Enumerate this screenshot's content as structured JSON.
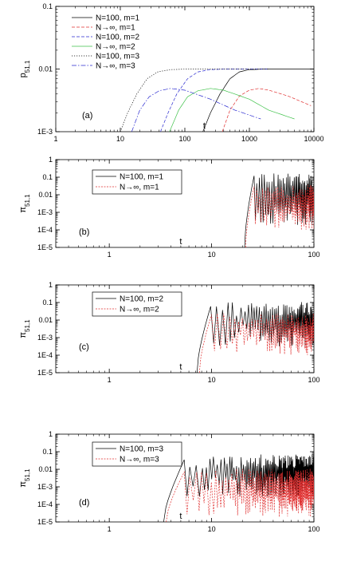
{
  "chart_data": [
    {
      "panel": "(a)",
      "type": "line",
      "ylabel": "p",
      "ylabel_sub": "51,1",
      "xlabel": "t",
      "xscale": "log",
      "yscale": "log",
      "xlim": [
        1,
        10000
      ],
      "ylim": [
        0.001,
        0.1
      ],
      "xticks": [
        {
          "v": 1,
          "t": "1"
        },
        {
          "v": 10,
          "t": "10"
        },
        {
          "v": 100,
          "t": "100"
        },
        {
          "v": 1000,
          "t": "1000"
        },
        {
          "v": 10000,
          "t": "10000"
        }
      ],
      "yticks": [
        {
          "v": 0.001,
          "t": "1E-3"
        },
        {
          "v": 0.01,
          "t": "0.01"
        },
        {
          "v": 0.1,
          "t": "0.1"
        }
      ],
      "legend_position": "top-left",
      "series": [
        {
          "name": "N=100, m=1",
          "color": "#000000",
          "dash": "",
          "points": [
            [
              190,
              0.001
            ],
            [
              250,
              0.002
            ],
            [
              350,
              0.004
            ],
            [
              500,
              0.007
            ],
            [
              700,
              0.009
            ],
            [
              1000,
              0.0098
            ],
            [
              2000,
              0.01
            ],
            [
              10000,
              0.01
            ]
          ]
        },
        {
          "name": "N→∞, m=1",
          "color": "#e03030",
          "dash": "4,2",
          "points": [
            [
              380,
              0.001
            ],
            [
              500,
              0.0022
            ],
            [
              700,
              0.0037
            ],
            [
              1000,
              0.0046
            ],
            [
              1400,
              0.0049
            ],
            [
              2000,
              0.0046
            ],
            [
              4000,
              0.0037
            ],
            [
              9000,
              0.0026
            ]
          ]
        },
        {
          "name": "N=100, m=2",
          "color": "#2a2ad0",
          "dash": "4,2",
          "points": [
            [
              42,
              0.001
            ],
            [
              55,
              0.002
            ],
            [
              75,
              0.004
            ],
            [
              110,
              0.007
            ],
            [
              160,
              0.009
            ],
            [
              250,
              0.0098
            ],
            [
              500,
              0.01
            ],
            [
              2000,
              0.01
            ]
          ]
        },
        {
          "name": "N→∞, m=2",
          "color": "#3fc24a",
          "dash": "",
          "points": [
            [
              58,
              0.001
            ],
            [
              80,
              0.0022
            ],
            [
              110,
              0.0036
            ],
            [
              160,
              0.0045
            ],
            [
              250,
              0.0049
            ],
            [
              400,
              0.0046
            ],
            [
              1000,
              0.0033
            ],
            [
              2000,
              0.0022
            ],
            [
              5000,
              0.0016
            ]
          ]
        },
        {
          "name": "N=100, m=3",
          "color": "#000000",
          "dash": "1.2,1.8",
          "points": [
            [
              10,
              0.001
            ],
            [
              13,
              0.002
            ],
            [
              18,
              0.004
            ],
            [
              26,
              0.007
            ],
            [
              38,
              0.009
            ],
            [
              60,
              0.0098
            ],
            [
              120,
              0.01
            ],
            [
              500,
              0.01
            ],
            [
              2000,
              0.01
            ]
          ]
        },
        {
          "name": "N→∞, m=3",
          "color": "#2a2ad0",
          "dash": "6,2,1.5,2",
          "points": [
            [
              15,
              0.001
            ],
            [
              20,
              0.0022
            ],
            [
              28,
              0.0036
            ],
            [
              40,
              0.0045
            ],
            [
              60,
              0.0049
            ],
            [
              100,
              0.0046
            ],
            [
              250,
              0.0033
            ],
            [
              600,
              0.0022
            ],
            [
              1500,
              0.0016
            ]
          ]
        }
      ]
    },
    {
      "panel": "(b)",
      "type": "line",
      "ylabel": "π",
      "ylabel_sub": "51,1",
      "xlabel": "t",
      "xscale": "log",
      "yscale": "log",
      "xlim": [
        0.3,
        100
      ],
      "ylim": [
        1e-05,
        1
      ],
      "xticks": [
        {
          "v": 1,
          "t": "1"
        },
        {
          "v": 10,
          "t": "10"
        },
        {
          "v": 100,
          "t": "100"
        }
      ],
      "yticks": [
        {
          "v": 1e-05,
          "t": "1E-5"
        },
        {
          "v": 0.0001,
          "t": "1E-4"
        },
        {
          "v": 0.001,
          "t": "1E-3"
        },
        {
          "v": 0.01,
          "t": "0.01"
        },
        {
          "v": 0.1,
          "t": "0.1"
        },
        {
          "v": 1,
          "t": "1"
        }
      ],
      "legend_position": "top-left",
      "series": [
        {
          "name": "N=100, m=1",
          "color": "#000000",
          "dash": "",
          "onset": 21,
          "peak_t": 26,
          "peak_v": 0.12,
          "band_top": 0.05,
          "band_bottom": 0.003,
          "period": 2.0
        },
        {
          "name": "N→∞, m=1",
          "color": "#e03030",
          "dash": "2,1.5",
          "onset": 21.5,
          "peak_t": 26,
          "peak_v": 0.03,
          "band_top": 0.012,
          "band_bottom": 0.0015,
          "period": 2.0
        }
      ]
    },
    {
      "panel": "(c)",
      "type": "line",
      "ylabel": "π",
      "ylabel_sub": "51,1",
      "xlabel": "t",
      "xscale": "log",
      "yscale": "log",
      "xlim": [
        0.3,
        100
      ],
      "ylim": [
        1e-05,
        1
      ],
      "xticks": [
        {
          "v": 1,
          "t": "1"
        },
        {
          "v": 10,
          "t": "10"
        },
        {
          "v": 100,
          "t": "100"
        }
      ],
      "yticks": [
        {
          "v": 1e-05,
          "t": "1E-5"
        },
        {
          "v": 0.0001,
          "t": "1E-4"
        },
        {
          "v": 0.001,
          "t": "1E-3"
        },
        {
          "v": 0.01,
          "t": "0.01"
        },
        {
          "v": 0.1,
          "t": "0.1"
        },
        {
          "v": 1,
          "t": "1"
        }
      ],
      "legend_position": "top-left",
      "series": [
        {
          "name": "N=100, m=2",
          "color": "#000000",
          "dash": "",
          "onset": 7.2,
          "peak_t": 9.8,
          "peak_v": 0.06,
          "band_top": 0.03,
          "band_bottom": 0.005,
          "period": 1.7
        },
        {
          "name": "N→∞, m=2",
          "color": "#e03030",
          "dash": "2,1.5",
          "onset": 7.6,
          "peak_t": 10.0,
          "peak_v": 0.02,
          "band_top": 0.007,
          "band_bottom": 0.0015,
          "period": 1.7
        }
      ]
    },
    {
      "panel": "(d)",
      "type": "line",
      "ylabel": "π",
      "ylabel_sub": "51,1",
      "xlabel": "t",
      "xscale": "log",
      "yscale": "log",
      "xlim": [
        0.3,
        100
      ],
      "ylim": [
        1e-05,
        1
      ],
      "xticks": [
        {
          "v": 1,
          "t": "1"
        },
        {
          "v": 10,
          "t": "10"
        },
        {
          "v": 100,
          "t": "100"
        }
      ],
      "yticks": [
        {
          "v": 1e-05,
          "t": "1E-5"
        },
        {
          "v": 0.0001,
          "t": "1E-4"
        },
        {
          "v": 0.001,
          "t": "1E-3"
        },
        {
          "v": 0.01,
          "t": "0.01"
        },
        {
          "v": 0.1,
          "t": "0.1"
        },
        {
          "v": 1,
          "t": "1"
        }
      ],
      "legend_position": "top-left",
      "series": [
        {
          "name": "N=100, m=3",
          "color": "#000000",
          "dash": "",
          "onset": 3.4,
          "peak_t": 5.4,
          "peak_v": 0.035,
          "band_top": 0.02,
          "band_bottom": 0.004,
          "period": 0.9
        },
        {
          "name": "N→∞, m=3",
          "color": "#e03030",
          "dash": "2,1.5",
          "onset": 3.6,
          "peak_t": 5.4,
          "peak_v": 0.007,
          "band_top": 0.003,
          "band_bottom": 0.0003,
          "period": 0.9
        }
      ]
    }
  ]
}
